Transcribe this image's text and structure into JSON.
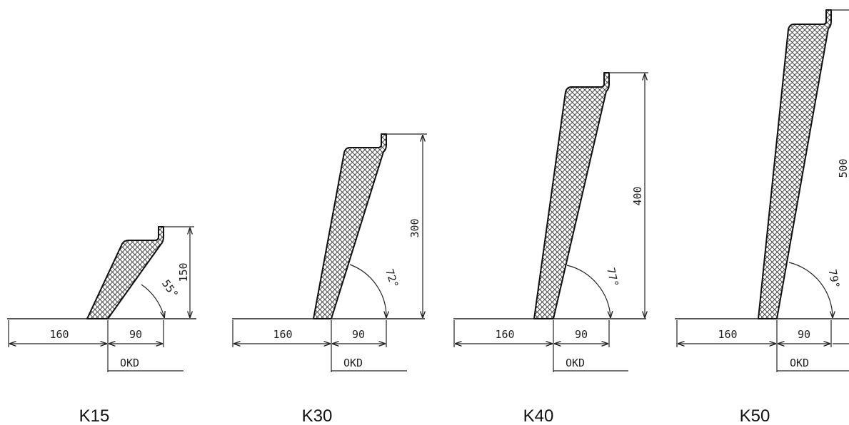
{
  "profiles": [
    {
      "name": "K15",
      "height": "150",
      "angle": "55°",
      "base_width": "160",
      "top_width": "90",
      "okd_label": "OKD"
    },
    {
      "name": "K30",
      "height": "300",
      "angle": "72°",
      "base_width": "160",
      "top_width": "90",
      "okd_label": "OKD"
    },
    {
      "name": "K40",
      "height": "400",
      "angle": "77°",
      "base_width": "160",
      "top_width": "90",
      "okd_label": "OKD"
    },
    {
      "name": "K50",
      "height": "500",
      "angle": "79°",
      "base_width": "160",
      "top_width": "90",
      "okd_label": "OKD"
    }
  ],
  "colors": {
    "line": "#222222",
    "hatch": "#333333",
    "background": "#ffffff"
  }
}
